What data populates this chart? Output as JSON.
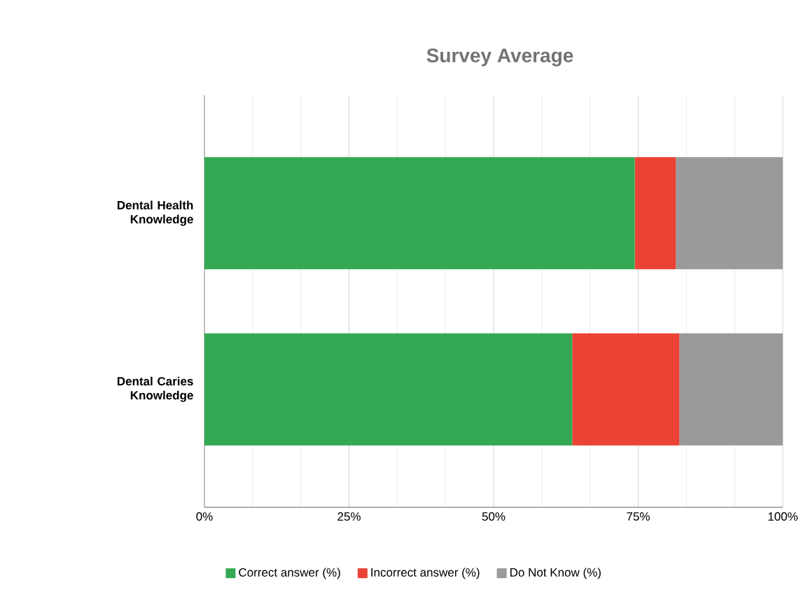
{
  "chart_data": {
    "type": "bar",
    "orientation": "horizontal",
    "stacked": true,
    "title": "Survey Average",
    "categories": [
      "Dental Health Knowledge",
      "Dental Caries Knowledge"
    ],
    "series": [
      {
        "name": "Correct answer (%)",
        "color": "#34a853",
        "values": [
          74.4,
          63.6
        ]
      },
      {
        "name": "Incorrect answer (%)",
        "color": "#ea4335",
        "values": [
          7.1,
          18.5
        ]
      },
      {
        "name": "Do Not Know (%)",
        "color": "#9a9a9a",
        "values": [
          18.5,
          17.9
        ]
      }
    ],
    "xlim": [
      0,
      100
    ],
    "xticks": [
      {
        "value": 0,
        "label": "0%"
      },
      {
        "value": 25,
        "label": "25%"
      },
      {
        "value": 50,
        "label": "50%"
      },
      {
        "value": 75,
        "label": "75%"
      },
      {
        "value": 100,
        "label": "100%"
      }
    ],
    "grid": "x",
    "legend": "bottom"
  }
}
